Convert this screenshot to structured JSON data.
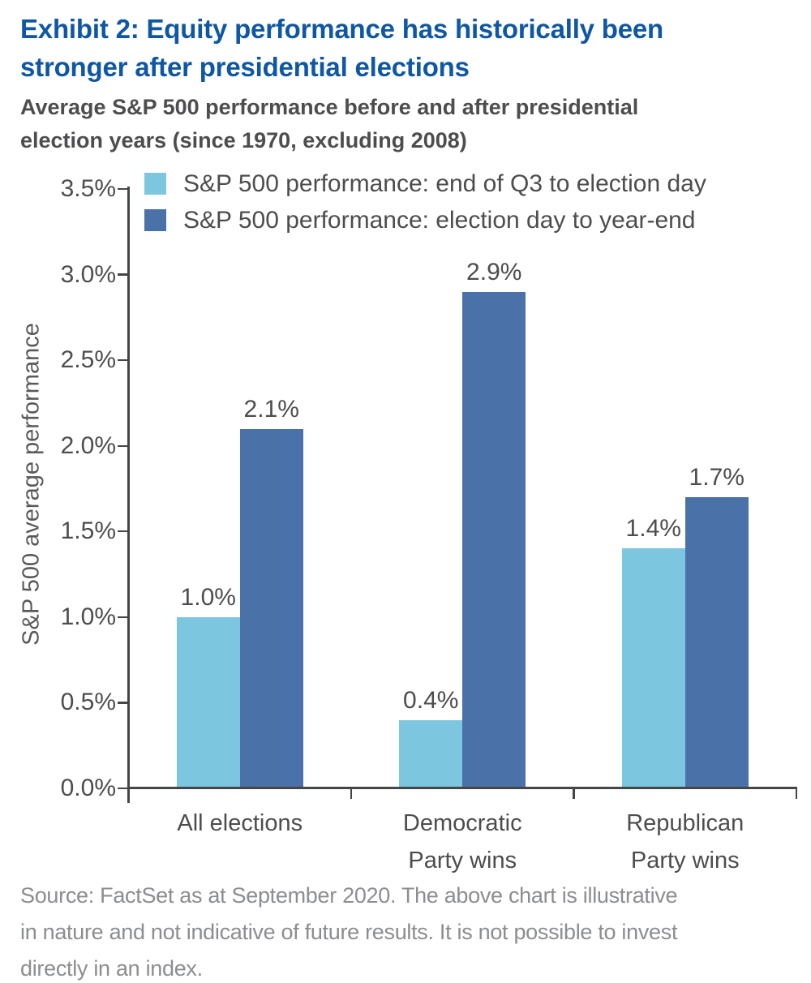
{
  "header": {
    "title": "Exhibit 2: Equity performance has historically been\nstronger after presidential elections",
    "subtitle": "Average S&P 500 performance before and after presidential\nelection years (since 1970, excluding 2008)"
  },
  "chart_data": {
    "type": "bar",
    "title": "Exhibit 2: Equity performance has historically been stronger after presidential elections",
    "subtitle": "Average S&P 500 performance before and after presidential election years (since 1970, excluding 2008)",
    "ylabel": "S&P 500 average performance",
    "ylim": [
      0,
      3.5
    ],
    "ytick_step": 0.5,
    "yticks": [
      "0.0%",
      "0.5%",
      "1.0%",
      "1.5%",
      "2.0%",
      "2.5%",
      "3.0%",
      "3.5%"
    ],
    "grid": false,
    "legend_position": "upper-left-inside",
    "categories": [
      "All elections",
      "Democratic\nParty wins",
      "Republican\nParty wins"
    ],
    "series": [
      {
        "name": "S&P 500 performance: end of Q3 to election day",
        "color": "#7cc6df",
        "values": [
          1.0,
          0.4,
          1.4
        ],
        "value_labels": [
          "1.0%",
          "0.4%",
          "1.4%"
        ]
      },
      {
        "name": "S&P 500 performance: election day to year-end",
        "color": "#4a72a8",
        "values": [
          2.1,
          2.9,
          1.7
        ],
        "value_labels": [
          "2.1%",
          "2.9%",
          "1.7%"
        ]
      }
    ]
  },
  "footer": {
    "source": "Source: FactSet as at September 2020. The above chart is illustrative\nin nature and not indicative of future results. It is not possible to invest\ndirectly in an index."
  },
  "colors": {
    "background": "#ffffff",
    "title": "#0f57a5",
    "subtitle": "#4d4d4f",
    "axis": "#464648",
    "tick_label": "#4d4d4f",
    "value_label": "#4d4d4f",
    "ylabel": "#58595b",
    "source": "#8b8d90",
    "series_light": "#7cc6df",
    "series_dark": "#4a72a8"
  }
}
